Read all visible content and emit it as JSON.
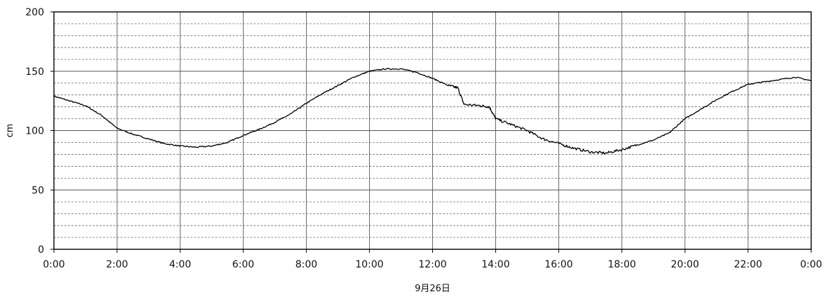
{
  "chart_data": {
    "type": "line",
    "title": "",
    "xlabel": "9月26日",
    "ylabel": "cm",
    "xlim": [
      0,
      24
    ],
    "ylim": [
      0,
      200
    ],
    "x_ticks": [
      0,
      2,
      4,
      6,
      8,
      10,
      12,
      14,
      16,
      18,
      20,
      22,
      24
    ],
    "x_tick_labels": [
      "0:00",
      "2:00",
      "4:00",
      "6:00",
      "8:00",
      "10:00",
      "12:00",
      "14:00",
      "16:00",
      "18:00",
      "20:00",
      "22:00",
      "0:00"
    ],
    "y_ticks": [
      0,
      50,
      100,
      150,
      200
    ],
    "y_tick_labels": [
      "0",
      "50",
      "100",
      "150",
      "200"
    ],
    "grid": {
      "major_vertical_every": 2,
      "major_horizontal_every": 50,
      "minor_horizontal_every": 10,
      "minor_style": "dashed"
    },
    "legend": "none",
    "series": [
      {
        "color": "#000000",
        "points": [
          [
            0,
            129
          ],
          [
            0.5,
            125
          ],
          [
            1.0,
            121
          ],
          [
            1.5,
            113
          ],
          [
            2.0,
            102
          ],
          [
            2.5,
            97
          ],
          [
            3.0,
            93
          ],
          [
            3.5,
            89
          ],
          [
            4.0,
            87
          ],
          [
            4.5,
            86
          ],
          [
            5.0,
            87
          ],
          [
            5.5,
            90
          ],
          [
            6.0,
            96
          ],
          [
            6.5,
            101
          ],
          [
            7.0,
            107
          ],
          [
            7.5,
            114
          ],
          [
            8.0,
            123
          ],
          [
            8.5,
            131
          ],
          [
            9.0,
            138
          ],
          [
            9.5,
            145
          ],
          [
            10.0,
            150
          ],
          [
            10.5,
            152
          ],
          [
            11.0,
            152
          ],
          [
            11.5,
            149
          ],
          [
            12.0,
            144
          ],
          [
            12.5,
            138
          ],
          [
            12.8,
            136
          ],
          [
            13.0,
            122
          ],
          [
            13.5,
            121
          ],
          [
            13.8,
            120
          ],
          [
            14.0,
            110
          ],
          [
            14.5,
            105
          ],
          [
            15.0,
            100
          ],
          [
            15.5,
            93
          ],
          [
            16.0,
            89
          ],
          [
            16.5,
            85
          ],
          [
            17.0,
            82
          ],
          [
            17.5,
            81
          ],
          [
            18.0,
            84
          ],
          [
            18.5,
            88
          ],
          [
            19.0,
            92
          ],
          [
            19.5,
            98
          ],
          [
            20.0,
            110
          ],
          [
            20.5,
            118
          ],
          [
            21.0,
            126
          ],
          [
            21.5,
            133
          ],
          [
            22.0,
            139
          ],
          [
            22.5,
            141
          ],
          [
            23.0,
            143
          ],
          [
            23.5,
            145
          ],
          [
            24.0,
            142
          ]
        ]
      }
    ]
  }
}
